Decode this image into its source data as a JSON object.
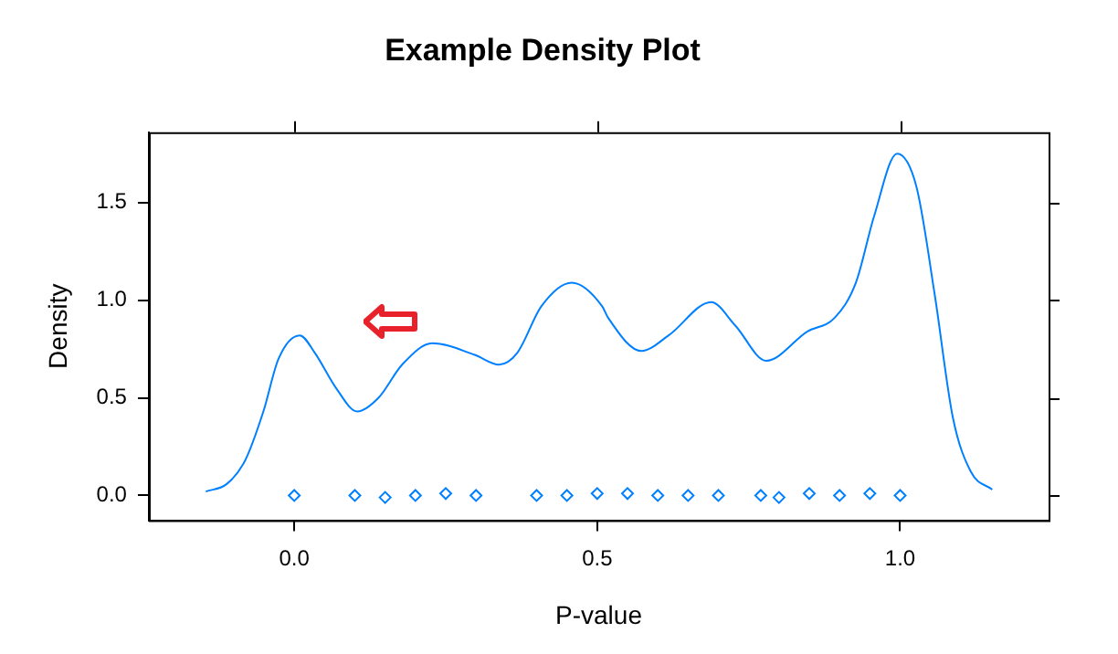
{
  "chart_data": {
    "type": "line",
    "title": "Example Density Plot",
    "xlabel": "P-value",
    "ylabel": "Density",
    "xlim": [
      -0.24,
      1.245
    ],
    "ylim": [
      -0.127,
      1.86
    ],
    "xticks": [
      {
        "value": 0,
        "label": "0.0"
      },
      {
        "value": 0.5,
        "label": "0.5"
      },
      {
        "value": 1,
        "label": "1.0"
      }
    ],
    "yticks": [
      {
        "value": 0,
        "label": "0.0"
      },
      {
        "value": 0.5,
        "label": "0.5"
      },
      {
        "value": 1,
        "label": "1.0"
      },
      {
        "value": 1.5,
        "label": "1.5"
      }
    ],
    "grid": false,
    "legend": false,
    "series": [
      {
        "color": "#0080ff",
        "marker": "none",
        "x": [
          -0.146,
          -0.111,
          -0.081,
          -0.051,
          -0.026,
          0.009,
          0.034,
          0.069,
          0.104,
          0.139,
          0.178,
          0.228,
          0.298,
          0.338,
          0.368,
          0.408,
          0.458,
          0.508,
          0.518,
          0.573,
          0.618,
          0.688,
          0.728,
          0.779,
          0.847,
          0.892,
          0.927,
          0.957,
          0.995,
          1.027,
          1.057,
          1.087,
          1.117,
          1.152
        ],
        "values": [
          0.02,
          0.06,
          0.18,
          0.43,
          0.7,
          0.82,
          0.73,
          0.55,
          0.43,
          0.5,
          0.67,
          0.78,
          0.72,
          0.67,
          0.73,
          0.97,
          1.09,
          0.97,
          0.91,
          0.74,
          0.82,
          0.99,
          0.87,
          0.69,
          0.84,
          0.91,
          1.09,
          1.43,
          1.75,
          1.58,
          1.03,
          0.4,
          0.12,
          0.03
        ]
      },
      {
        "type": "scatter",
        "color": "#0080ff",
        "marker": "diamond",
        "x": [
          0,
          0.1,
          0.15,
          0.2,
          0.25,
          0.3,
          0.4,
          0.45,
          0.5,
          0.55,
          0.6,
          0.65,
          0.7,
          0.77,
          0.8,
          0.85,
          0.9,
          0.95,
          1
        ],
        "values": [
          0,
          0,
          -0.01,
          0,
          0.01,
          0,
          0,
          0,
          0.01,
          0.01,
          0,
          0,
          0,
          0,
          -0.01,
          0.01,
          0,
          0.01,
          0
        ]
      }
    ]
  }
}
